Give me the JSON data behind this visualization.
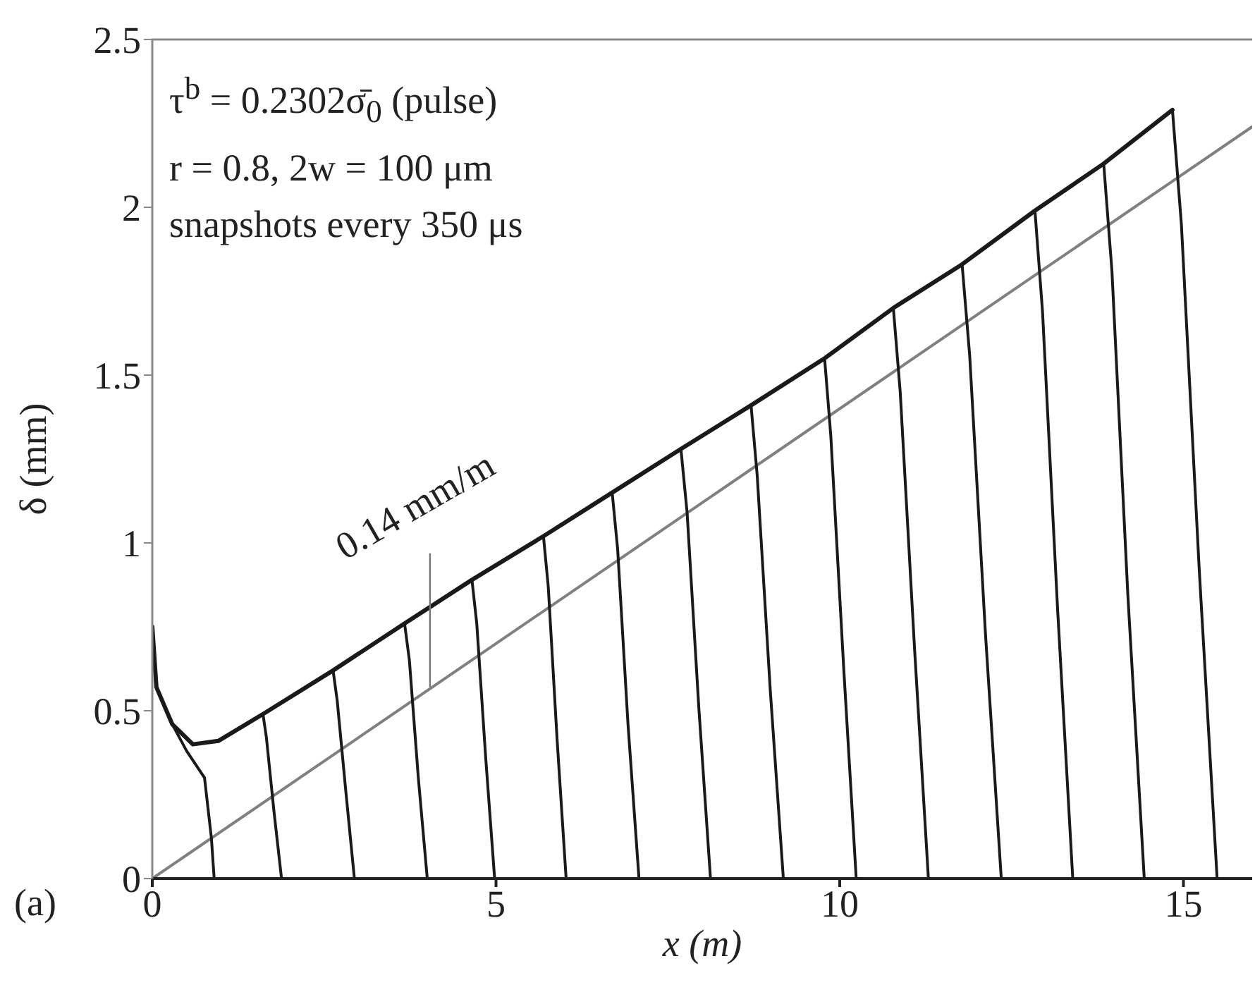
{
  "chart_data": {
    "type": "line",
    "xlabel": "x (m)",
    "ylabel": "δ (mm)",
    "xlim": [
      0,
      16
    ],
    "ylim": [
      0,
      2.5
    ],
    "xticks": [
      0,
      5,
      10,
      15
    ],
    "yticks": [
      0,
      0.5,
      1,
      1.5,
      2,
      2.5
    ],
    "grid": false,
    "marker": "none",
    "line_style": "solid",
    "annotations": [
      "τ$^{b}$ = 0.2302σ̄$_{0}$ (pulse)",
      "r = 0.8, 2w = 100 μm",
      "snapshots every 350 μs",
      {
        "text": "0.14 mm/m",
        "x": 4.04,
        "y": 0.57
      },
      "(a)"
    ],
    "series": [
      {
        "color": "#808080",
        "x": [
          0,
          16
        ],
        "values": [
          0,
          2.24
        ]
      },
      {
        "color": "#1a1a1a",
        "x": [
          0,
          0.06,
          0.29,
          0.59,
          0.96,
          1.61,
          2.63,
          3.67,
          4.65,
          5.69,
          6.69,
          7.69,
          8.71,
          9.78,
          10.78,
          11.78,
          12.84,
          13.84,
          14.84
        ],
        "values": [
          0.75,
          0.57,
          0.46,
          0.4,
          0.41,
          0.49,
          0.62,
          0.76,
          0.89,
          1.02,
          1.15,
          1.28,
          1.41,
          1.55,
          1.7,
          1.83,
          1.99,
          2.13,
          2.29
        ]
      },
      {
        "color": "#1a1a1a",
        "x": [
          0.29,
          0.5,
          0.76,
          0.86,
          0.9
        ],
        "values": [
          0.46,
          0.38,
          0.3,
          0.12,
          0
        ]
      },
      {
        "color": "#1a1a1a",
        "x": [
          1.61,
          1.66,
          1.77,
          1.88
        ],
        "values": [
          0.49,
          0.42,
          0.2,
          0
        ]
      },
      {
        "color": "#1a1a1a",
        "x": [
          2.63,
          2.69,
          2.82,
          2.94
        ],
        "values": [
          0.62,
          0.53,
          0.25,
          0
        ]
      },
      {
        "color": "#1a1a1a",
        "x": [
          3.67,
          3.74,
          3.87,
          4.0
        ],
        "values": [
          0.76,
          0.65,
          0.3,
          0
        ]
      },
      {
        "color": "#1a1a1a",
        "x": [
          4.65,
          4.72,
          4.85,
          4.98
        ],
        "values": [
          0.89,
          0.76,
          0.36,
          0
        ]
      },
      {
        "color": "#1a1a1a",
        "x": [
          5.69,
          5.76,
          5.89,
          6.02
        ],
        "values": [
          1.02,
          0.87,
          0.41,
          0
        ]
      },
      {
        "color": "#1a1a1a",
        "x": [
          6.69,
          6.77,
          6.92,
          7.08
        ],
        "values": [
          1.15,
          0.98,
          0.46,
          0
        ]
      },
      {
        "color": "#1a1a1a",
        "x": [
          7.69,
          7.78,
          7.95,
          8.12
        ],
        "values": [
          1.28,
          1.09,
          0.51,
          0
        ]
      },
      {
        "color": "#1a1a1a",
        "x": [
          8.71,
          8.8,
          8.99,
          9.18
        ],
        "values": [
          1.41,
          1.2,
          0.56,
          0
        ]
      },
      {
        "color": "#1a1a1a",
        "x": [
          9.78,
          9.87,
          10.06,
          10.24
        ],
        "values": [
          1.55,
          1.32,
          0.62,
          0
        ]
      },
      {
        "color": "#1a1a1a",
        "x": [
          10.78,
          10.88,
          11.09,
          11.29
        ],
        "values": [
          1.7,
          1.45,
          0.68,
          0
        ]
      },
      {
        "color": "#1a1a1a",
        "x": [
          11.78,
          11.89,
          12.12,
          12.35
        ],
        "values": [
          1.83,
          1.56,
          0.73,
          0
        ]
      },
      {
        "color": "#1a1a1a",
        "x": [
          12.84,
          12.95,
          13.17,
          13.39
        ],
        "values": [
          1.99,
          1.69,
          0.8,
          0
        ]
      },
      {
        "color": "#1a1a1a",
        "x": [
          13.84,
          13.96,
          14.19,
          14.43
        ],
        "values": [
          2.13,
          1.81,
          0.85,
          0
        ]
      },
      {
        "color": "#1a1a1a",
        "x": [
          14.84,
          14.97,
          15.23,
          15.49
        ],
        "values": [
          2.29,
          1.95,
          0.92,
          0
        ]
      }
    ]
  }
}
